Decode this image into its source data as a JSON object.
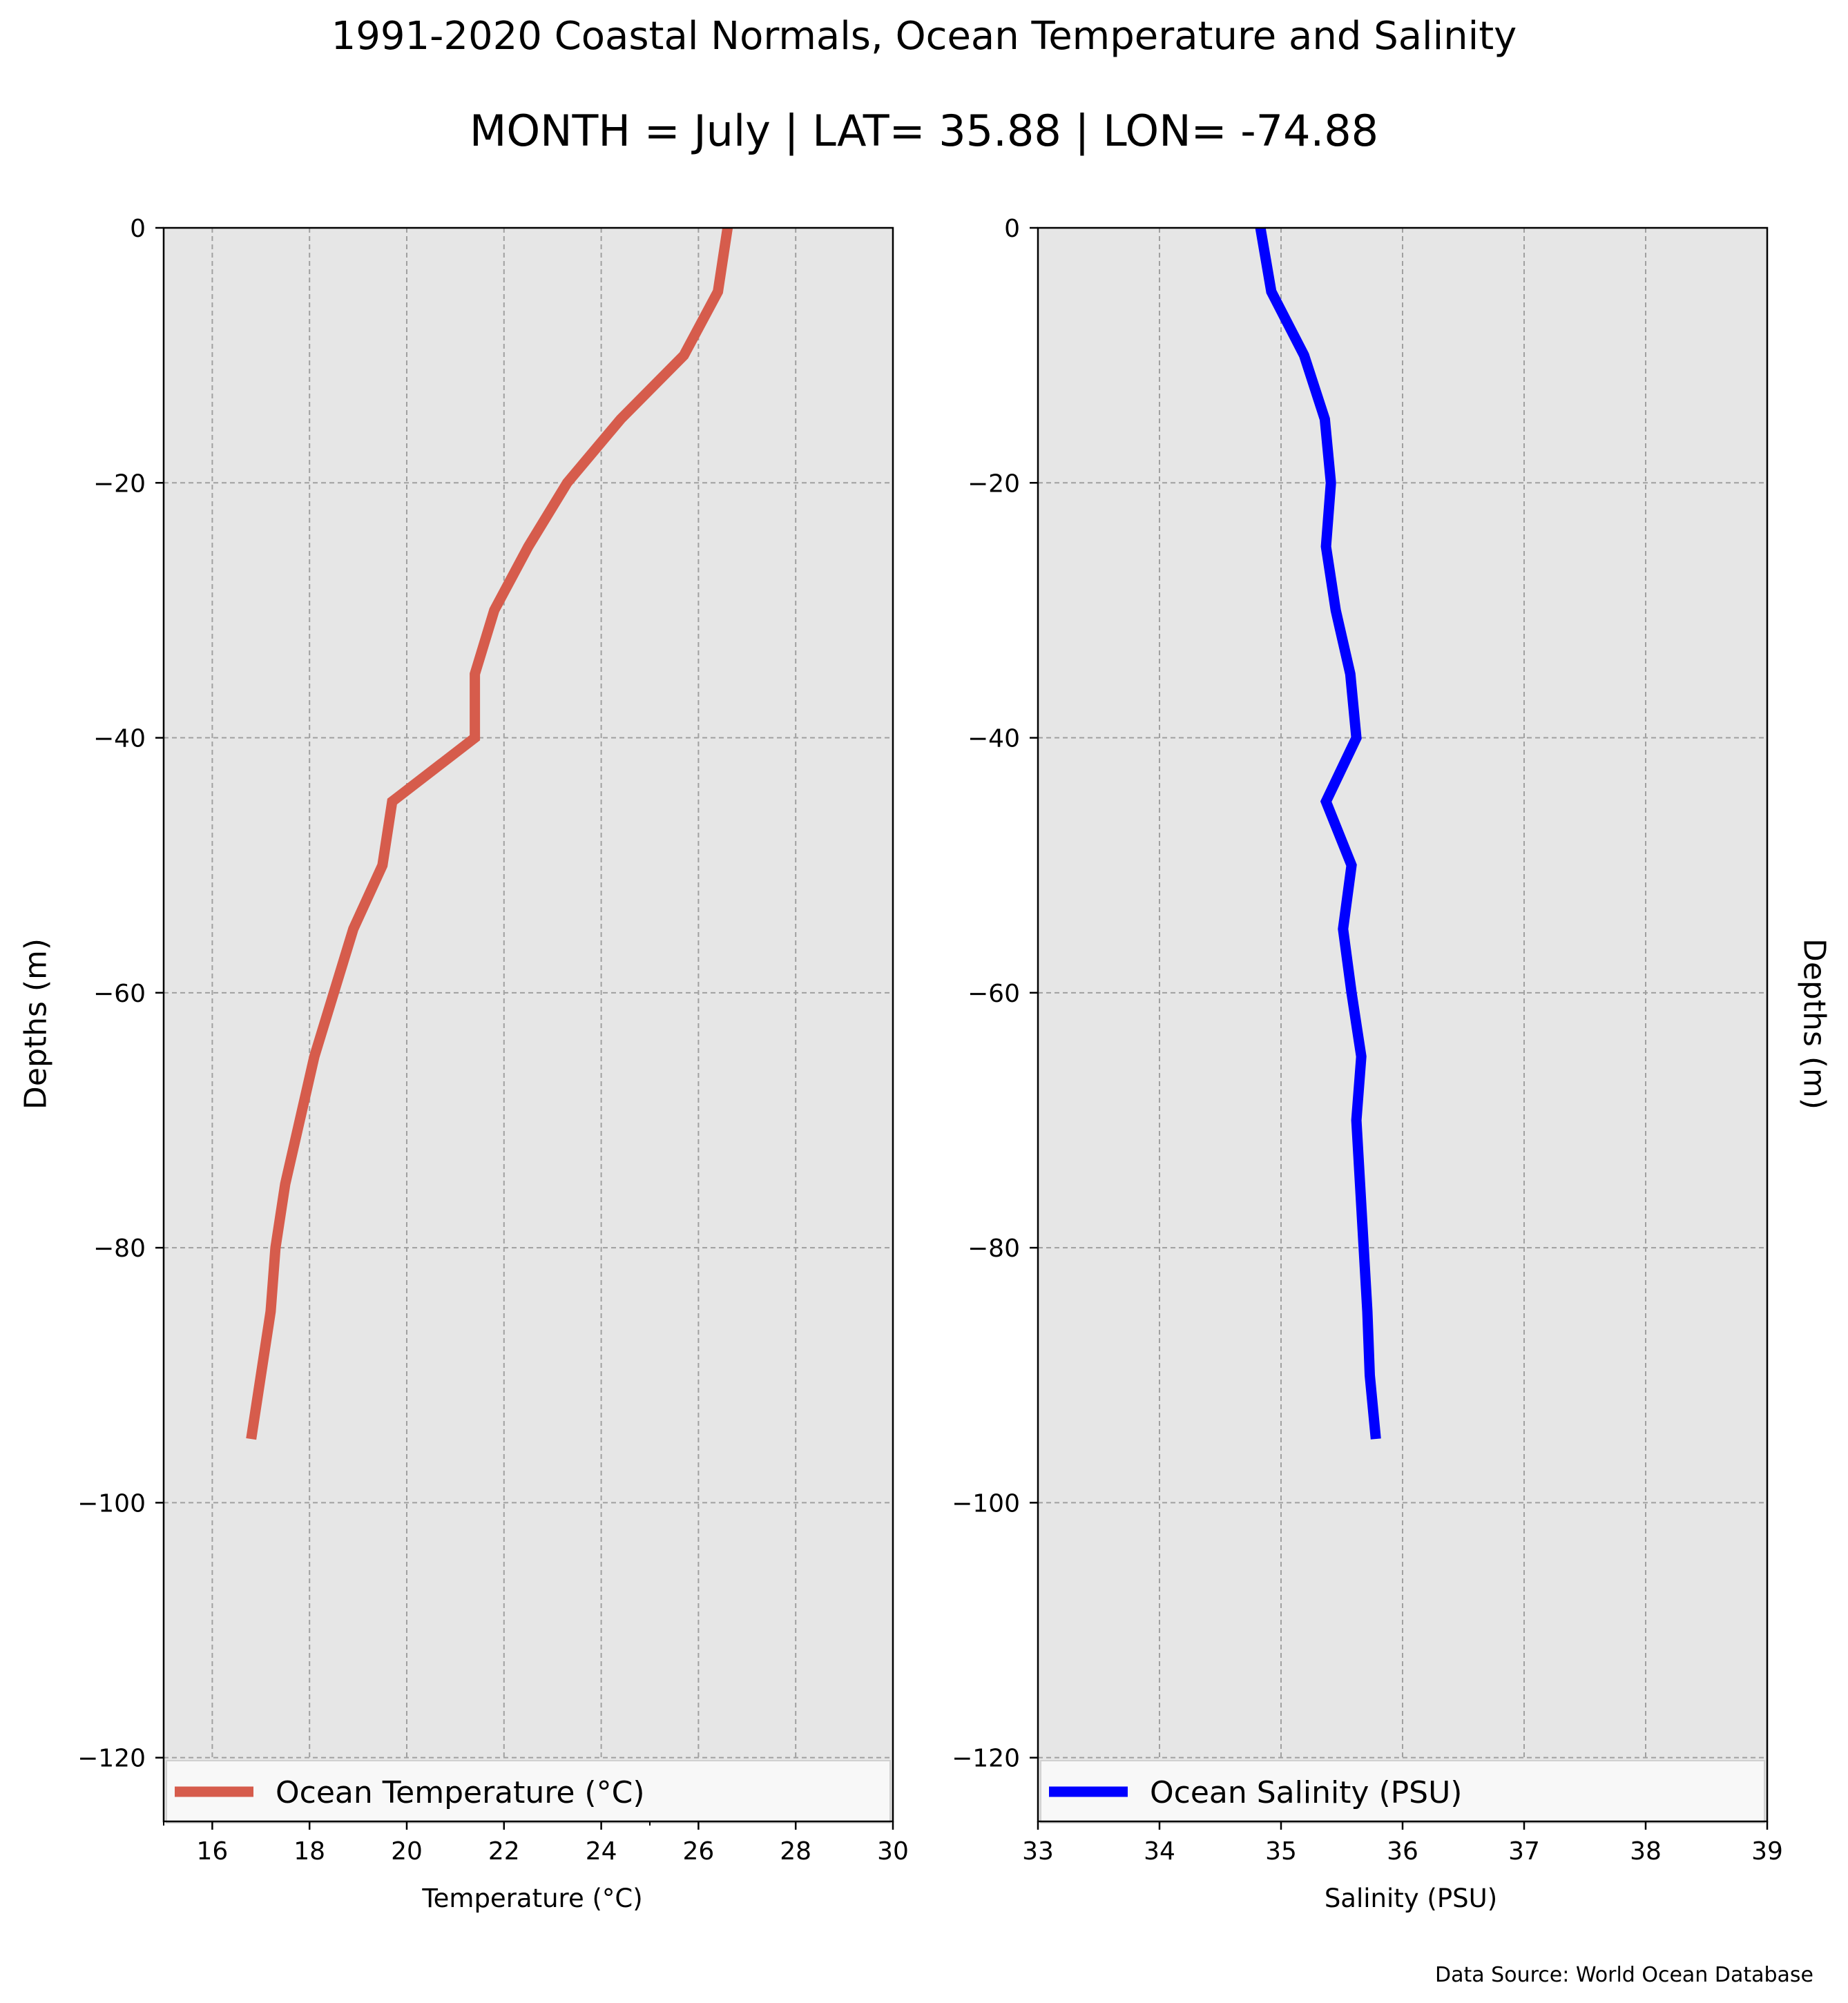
{
  "title": "1991-2020 Coastal Normals, Ocean Temperature and Salinity",
  "subtitle": "MONTH = July | LAT= 35.88 | LON= -74.88",
  "source": "Data Source: World Ocean Database",
  "ylabel": "Depths (m)",
  "colors": {
    "background": "#e6e6e6",
    "temperature": "#d65c4c",
    "salinity": "#0000ff",
    "grid": "#a0a0a0"
  },
  "chart_data": [
    {
      "type": "line",
      "xlabel": "Temperature ($^\\circ$C)",
      "xlabel_text": "Temperature (°C)",
      "ylabel": "Depths (m)",
      "xlim": [
        15,
        30
      ],
      "ylim": [
        -125,
        0
      ],
      "xticks": [
        16,
        18,
        20,
        22,
        24,
        26,
        28,
        30
      ],
      "yticks": [
        0,
        -20,
        -40,
        -60,
        -80,
        -100,
        -120
      ],
      "grid": true,
      "legend_position": "bottom",
      "series": [
        {
          "name": "Ocean Temperature (°C)",
          "x": [
            26.6,
            26.4,
            25.7,
            24.4,
            23.3,
            22.5,
            21.8,
            21.4,
            21.4,
            19.7,
            19.5,
            18.9,
            18.5,
            18.1,
            17.8,
            17.5,
            17.3,
            17.2,
            17.0,
            16.8
          ],
          "y": [
            0,
            -5,
            -10,
            -15,
            -20,
            -25,
            -30,
            -35,
            -40,
            -45,
            -50,
            -55,
            -60,
            -65,
            -70,
            -75,
            -80,
            -85,
            -90,
            -95
          ]
        }
      ]
    },
    {
      "type": "line",
      "xlabel": "Salinity (PSU)",
      "ylabel": "Depths (m)",
      "xlim": [
        33,
        39
      ],
      "ylim": [
        -125,
        0
      ],
      "xticks": [
        33,
        34,
        35,
        36,
        37,
        38,
        39
      ],
      "yticks": [
        0,
        -20,
        -40,
        -60,
        -80,
        -100,
        -120
      ],
      "grid": true,
      "legend_position": "bottom",
      "series": [
        {
          "name": "Ocean Salinity (PSU)",
          "x": [
            34.83,
            34.92,
            35.19,
            35.36,
            35.41,
            35.37,
            35.45,
            35.57,
            35.62,
            35.37,
            35.58,
            35.51,
            35.58,
            35.66,
            35.62,
            35.65,
            35.68,
            35.71,
            35.73,
            35.78
          ],
          "y": [
            0,
            -5,
            -10,
            -15,
            -20,
            -25,
            -30,
            -35,
            -40,
            -45,
            -50,
            -55,
            -60,
            -65,
            -70,
            -75,
            -80,
            -85,
            -90,
            -95
          ]
        }
      ]
    }
  ]
}
